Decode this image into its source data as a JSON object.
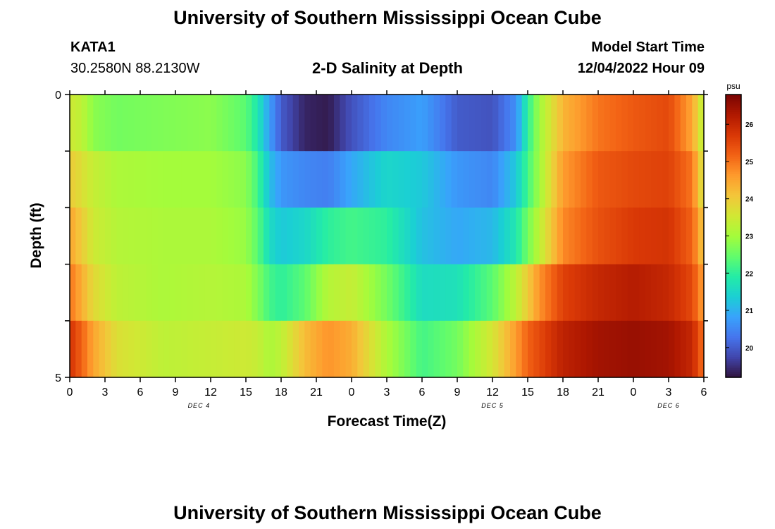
{
  "page": {
    "title_top": "University of Southern Mississippi Ocean Cube",
    "title_bottom": "University of Southern Mississippi Ocean Cube",
    "station_id": "KATA1",
    "station_coords": "30.2580N  88.2130W",
    "subtitle": "2-D Salinity at Depth",
    "model_start_label": "Model Start Time",
    "model_start_value": "12/04/2022 Hour 09"
  },
  "chart_data": {
    "type": "heatmap",
    "title": "2-D Salinity at Depth",
    "xlabel": "Forecast Time(Z)",
    "ylabel": "Depth (ft)",
    "x_tick_labels": [
      "0",
      "3",
      "6",
      "9",
      "12",
      "15",
      "18",
      "21",
      "0",
      "3",
      "6",
      "9",
      "12",
      "15",
      "18",
      "21",
      "0",
      "3",
      "6"
    ],
    "x_hours": [
      0,
      3,
      6,
      9,
      12,
      15,
      18,
      21,
      24,
      27,
      30,
      33,
      36,
      39,
      42,
      45,
      48,
      51,
      54
    ],
    "x_range": [
      0,
      54
    ],
    "date_labels": [
      {
        "label": "DEC 4",
        "hour": 11
      },
      {
        "label": "DEC 5",
        "hour": 36
      },
      {
        "label": "DEC 6",
        "hour": 51
      }
    ],
    "y_tick_labels": [
      "0",
      "5"
    ],
    "y_range": [
      0,
      5
    ],
    "depth_levels_ft": [
      0,
      1,
      2,
      3,
      4,
      5
    ],
    "colorbar": {
      "unit": "psu",
      "min": 19.2,
      "max": 26.8,
      "ticks": [
        20,
        21,
        22,
        23,
        24,
        25,
        26
      ],
      "colors": [
        "#30123b",
        "#4145ab",
        "#4675ed",
        "#39a2fc",
        "#1bcfd4",
        "#24eca6",
        "#61fc6c",
        "#a4fc3b",
        "#d1e834",
        "#f3c63a",
        "#fe9b2d",
        "#f36315",
        "#d93806",
        "#b11901",
        "#7a0403"
      ]
    },
    "time_anchors_hours": [
      0,
      1,
      2,
      4,
      8,
      12,
      15,
      16,
      17,
      18,
      20,
      22,
      24,
      27,
      30,
      33,
      36,
      38,
      39,
      40,
      42,
      45,
      48,
      51,
      53,
      54
    ],
    "salinity_rows": [
      {
        "depth_ft": 0.5,
        "values": [
          23.5,
          23.3,
          22.8,
          22.6,
          22.7,
          22.8,
          22.4,
          21.8,
          20.8,
          20.0,
          19.4,
          19.3,
          19.9,
          20.5,
          20.8,
          20.0,
          19.9,
          20.6,
          22.0,
          23.0,
          24.3,
          25.0,
          25.3,
          25.5,
          24.5,
          23.2
        ]
      },
      {
        "depth_ft": 1.5,
        "values": [
          24.0,
          23.7,
          23.4,
          23.1,
          23.0,
          23.0,
          22.8,
          22.2,
          21.2,
          20.7,
          20.5,
          20.4,
          20.9,
          21.5,
          21.3,
          20.7,
          20.5,
          21.3,
          22.2,
          23.0,
          24.6,
          25.3,
          25.5,
          25.6,
          25.0,
          23.5
        ]
      },
      {
        "depth_ft": 2.5,
        "values": [
          24.5,
          24.0,
          23.5,
          23.2,
          23.1,
          23.1,
          22.9,
          22.4,
          21.6,
          21.3,
          21.5,
          22.0,
          22.2,
          22.0,
          21.2,
          20.9,
          21.1,
          21.8,
          22.6,
          23.3,
          24.8,
          25.4,
          25.7,
          25.8,
          25.2,
          24.0
        ]
      },
      {
        "depth_ft": 3.5,
        "values": [
          25.0,
          24.4,
          23.8,
          23.3,
          23.1,
          23.2,
          23.1,
          22.7,
          22.2,
          22.0,
          22.4,
          23.2,
          23.4,
          22.6,
          21.6,
          21.7,
          22.4,
          23.3,
          24.0,
          24.7,
          25.6,
          26.0,
          26.2,
          26.0,
          25.5,
          24.5
        ]
      },
      {
        "depth_ft": 4.5,
        "values": [
          25.8,
          25.2,
          24.5,
          23.7,
          23.3,
          23.4,
          23.5,
          23.4,
          23.1,
          23.3,
          24.2,
          24.7,
          24.4,
          23.1,
          22.2,
          22.6,
          23.6,
          24.6,
          25.2,
          25.5,
          26.1,
          26.4,
          26.5,
          26.4,
          26.0,
          25.0
        ]
      },
      {
        "depth_ft": 5.0,
        "values": [
          26.2,
          25.8,
          25.0,
          24.1,
          23.4,
          23.5,
          23.9,
          24.2,
          24.6,
          25.0,
          25.7,
          26.0,
          25.5,
          24.3,
          23.3,
          23.2,
          24.2,
          25.2,
          25.9,
          26.2,
          26.6,
          26.7,
          26.8,
          26.6,
          26.3,
          25.5
        ]
      }
    ]
  }
}
